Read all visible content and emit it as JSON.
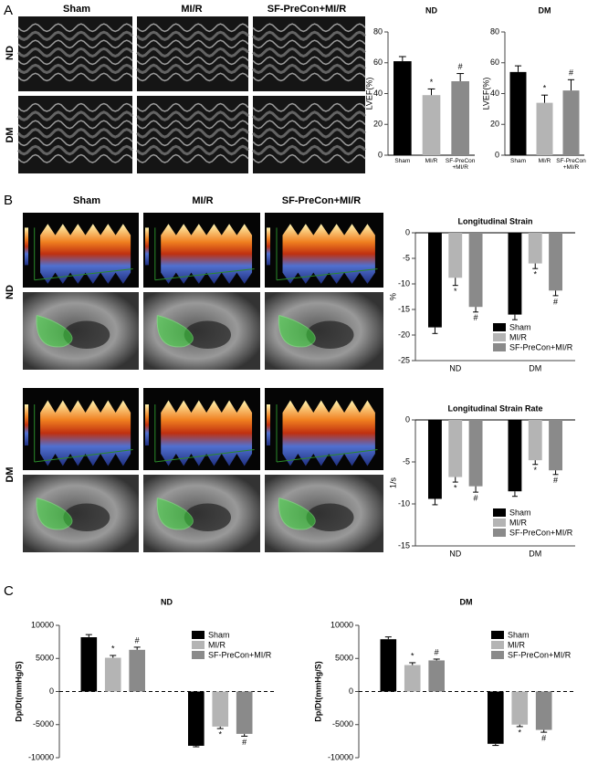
{
  "panels": [
    "A",
    "B",
    "C"
  ],
  "columns": [
    "Sham",
    "MI/R",
    "SF-PreCon+MI/R"
  ],
  "rows": [
    "ND",
    "DM"
  ],
  "chart_data": [
    {
      "type": "bar",
      "title": "ND",
      "y_label": "LVEF(%)",
      "categories": [
        "Sham",
        "MI/R",
        "SF-PreCon +MI/R"
      ],
      "values": [
        61,
        39,
        48
      ],
      "errors": [
        3,
        4,
        5
      ],
      "marks": [
        null,
        "*",
        "#"
      ],
      "colors": [
        "#000000",
        "#b4b4b4",
        "#8a8a8a"
      ],
      "ylim": [
        0,
        80
      ],
      "yticks": [
        0,
        20,
        40,
        60,
        80
      ]
    },
    {
      "type": "bar",
      "title": "DM",
      "y_label": "LVEF(%)",
      "categories": [
        "Sham",
        "MI/R",
        "SF-PreCon +MI/R"
      ],
      "values": [
        54,
        34,
        42
      ],
      "errors": [
        4,
        5,
        7
      ],
      "marks": [
        null,
        "*",
        "#"
      ],
      "colors": [
        "#000000",
        "#b4b4b4",
        "#8a8a8a"
      ],
      "ylim": [
        0,
        80
      ],
      "yticks": [
        0,
        20,
        40,
        60,
        80
      ]
    },
    {
      "type": "grouped_bar",
      "title": "Longitudinal Strain",
      "y_label": "%",
      "categories": [
        "ND",
        "DM"
      ],
      "legend": "lower right",
      "series": [
        {
          "name": "Sham",
          "color": "#000000",
          "values": [
            -18.5,
            -16
          ],
          "errors": [
            1.2,
            1
          ],
          "marks": [
            null,
            null
          ]
        },
        {
          "name": "MI/R",
          "color": "#b4b4b4",
          "values": [
            -8.8,
            -6
          ],
          "errors": [
            1.5,
            1
          ],
          "marks": [
            "*",
            "*"
          ]
        },
        {
          "name": "SF-PreCon+MI/R",
          "color": "#8a8a8a",
          "values": [
            -14.5,
            -11.3
          ],
          "errors": [
            1,
            1
          ],
          "marks": [
            "#",
            "#"
          ]
        }
      ],
      "ylim": [
        -25,
        0
      ],
      "yticks": [
        -25,
        -20,
        -15,
        -10,
        -5,
        0
      ]
    },
    {
      "type": "grouped_bar",
      "title": "Longitudinal Strain Rate",
      "y_label": "1/s",
      "categories": [
        "ND",
        "DM"
      ],
      "legend": "lower right",
      "series": [
        {
          "name": "Sham",
          "color": "#000000",
          "values": [
            -9.4,
            -8.5
          ],
          "errors": [
            0.7,
            0.6
          ],
          "marks": [
            null,
            null
          ]
        },
        {
          "name": "MI/R",
          "color": "#b4b4b4",
          "values": [
            -6.8,
            -4.8
          ],
          "errors": [
            0.6,
            0.5
          ],
          "marks": [
            "*",
            "*"
          ]
        },
        {
          "name": "SF-PreCon+MI/R",
          "color": "#8a8a8a",
          "values": [
            -7.9,
            -6
          ],
          "errors": [
            0.7,
            0.5
          ],
          "marks": [
            "#",
            "#"
          ]
        }
      ],
      "ylim": [
        -15,
        0
      ],
      "yticks": [
        -15,
        -10,
        -5,
        0
      ]
    },
    {
      "type": "grouped_bar",
      "title": "ND",
      "y_label": "Dp/Dt(mmHg/S)",
      "categories": [
        null,
        null
      ],
      "legend": "upper right",
      "series": [
        {
          "name": "Sham",
          "color": "#000000",
          "values": [
            8200,
            -8200
          ],
          "errors": [
            400,
            150
          ],
          "marks": [
            null,
            null
          ]
        },
        {
          "name": "MI/R",
          "color": "#b4b4b4",
          "values": [
            5100,
            -5300
          ],
          "errors": [
            350,
            300
          ],
          "marks": [
            "*",
            "*"
          ]
        },
        {
          "name": "SF-PreCon+MI/R",
          "color": "#8a8a8a",
          "values": [
            6300,
            -6400
          ],
          "errors": [
            400,
            350
          ],
          "marks": [
            "#",
            "#"
          ]
        }
      ],
      "ylim": [
        -10000,
        10000
      ],
      "yticks": [
        -10000,
        -5000,
        0,
        5000,
        10000
      ]
    },
    {
      "type": "grouped_bar",
      "title": "DM",
      "y_label": "Dp/Dt(mmHg/S)",
      "categories": [
        null,
        null
      ],
      "legend": "upper right",
      "series": [
        {
          "name": "Sham",
          "color": "#000000",
          "values": [
            7900,
            -7900
          ],
          "errors": [
            350,
            250
          ],
          "marks": [
            null,
            null
          ]
        },
        {
          "name": "MI/R",
          "color": "#b4b4b4",
          "values": [
            4000,
            -5000
          ],
          "errors": [
            350,
            300
          ],
          "marks": [
            "*",
            "*"
          ]
        },
        {
          "name": "SF-PreCon+MI/R",
          "color": "#8a8a8a",
          "values": [
            4700,
            -5800
          ],
          "errors": [
            200,
            350
          ],
          "marks": [
            "#",
            "#"
          ]
        }
      ],
      "ylim": [
        -10000,
        10000
      ],
      "yticks": [
        -10000,
        -5000,
        0,
        5000,
        10000
      ]
    }
  ]
}
